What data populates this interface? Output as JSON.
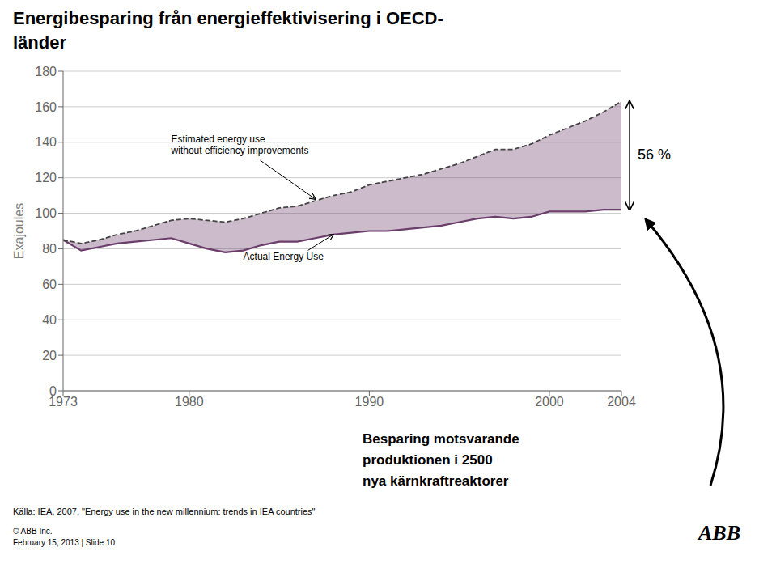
{
  "chart_data": {
    "type": "line",
    "title": "Energibesparing från energieffektivisering i OECD-\nländer",
    "ylabel": "Exajoules",
    "x": [
      1973,
      1974,
      1975,
      1976,
      1977,
      1978,
      1979,
      1980,
      1981,
      1982,
      1983,
      1984,
      1985,
      1986,
      1987,
      1988,
      1989,
      1990,
      1991,
      1992,
      1993,
      1994,
      1995,
      1996,
      1997,
      1998,
      1999,
      2000,
      2001,
      2002,
      2003,
      2004
    ],
    "series": [
      {
        "color": "#6a3d6a",
        "line_style": "solid",
        "values": [
          85,
          79,
          81,
          83,
          84,
          85,
          86,
          83,
          80,
          78,
          79,
          82,
          84,
          84,
          86,
          88,
          89,
          90,
          90,
          91,
          92,
          93,
          95,
          97,
          98,
          97,
          98,
          101,
          101,
          101,
          102,
          102
        ]
      },
      {
        "color": "#444444",
        "line_style": "dashed",
        "values": [
          85,
          83,
          85,
          88,
          90,
          93,
          96,
          97,
          96,
          95,
          97,
          100,
          103,
          104,
          107,
          110,
          112,
          116,
          118,
          120,
          122,
          125,
          128,
          132,
          136,
          136,
          139,
          144,
          148,
          152,
          157,
          163
        ]
      }
    ],
    "xlim": [
      1973,
      2004
    ],
    "xticks": [
      1973,
      1980,
      1990,
      2000,
      2004
    ],
    "ylim": [
      0,
      180
    ],
    "yticks": [
      0,
      20,
      40,
      60,
      80,
      100,
      120,
      140,
      160,
      180
    ],
    "grid": "y",
    "annotations": {
      "arrows": [
        {
          "text": "Estimated energy use\nwithout efficiency improvements",
          "x": 1987,
          "y": 108,
          "text_x": 1979,
          "text_y": 138
        },
        {
          "text": "Actual Energy Use",
          "x": 1988,
          "y": 88,
          "text_x": 1983,
          "text_y": 75
        }
      ],
      "difference": "56 %",
      "note": [
        "Besparing motsvarande",
        "produktionen i 2500",
        "nya kärnkraftreaktorer"
      ],
      "source": "Källa: IEA, 2007, \"Energy use in the new millennium: trends in IEA countries\"",
      "footer": [
        "© ABB Inc.",
        "February 15, 2013 | Slide 10"
      ],
      "logo": "ABB"
    }
  }
}
